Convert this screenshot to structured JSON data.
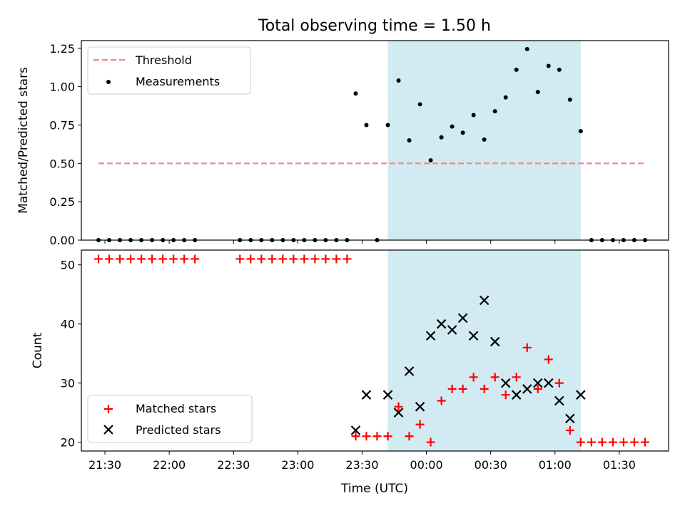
{
  "chart_data": {
    "title": "Total observing time = 1.50 h",
    "xlabel": "Time (UTC)",
    "x_unit": "hh:mm UTC (next-day times written as 24:xx / 25:xx)",
    "xlim": [
      "21:19",
      "25:53"
    ],
    "x_ticks": [
      "21:30",
      "22:00",
      "22:30",
      "23:00",
      "23:30",
      "00:00",
      "00:30",
      "01:00",
      "01:30"
    ],
    "x_tick_times": [
      "21:30",
      "22:00",
      "22:30",
      "23:00",
      "23:30",
      "24:00",
      "24:30",
      "25:00",
      "25:30"
    ],
    "observing_window": [
      "23:42",
      "25:12"
    ],
    "colors": {
      "threshold": "#ff7f7f",
      "measurements": "#000000",
      "matched": "#ff0000",
      "predicted": "#000000",
      "window": "#add8e6"
    },
    "panels": [
      {
        "type": "scatter",
        "ylabel": "Matched/Predicted stars",
        "ylim": [
          0,
          1.3
        ],
        "y_ticks": [
          "0.00",
          "0.25",
          "0.50",
          "0.75",
          "1.00",
          "1.25"
        ],
        "legend_position": "upper left",
        "threshold": {
          "name": "Threshold",
          "value": 0.5,
          "x_range": [
            "21:27",
            "25:42"
          ]
        },
        "series": [
          {
            "name": "Measurements",
            "x": [
              "21:27",
              "21:32",
              "21:37",
              "21:42",
              "21:47",
              "21:52",
              "21:57",
              "22:02",
              "22:07",
              "22:12",
              "22:33",
              "22:38",
              "22:43",
              "22:48",
              "22:53",
              "22:58",
              "23:03",
              "23:08",
              "23:13",
              "23:18",
              "23:23",
              "23:27",
              "23:32",
              "23:37",
              "23:42",
              "23:47",
              "23:52",
              "23:57",
              "24:02",
              "24:07",
              "24:12",
              "24:17",
              "24:22",
              "24:27",
              "24:32",
              "24:37",
              "24:42",
              "24:47",
              "24:52",
              "24:57",
              "25:02",
              "25:07",
              "25:12",
              "25:17",
              "25:22",
              "25:27",
              "25:32",
              "25:37",
              "25:42"
            ],
            "y": [
              0,
              0,
              0,
              0,
              0,
              0,
              0,
              0,
              0,
              0,
              0,
              0,
              0,
              0,
              0,
              0,
              0,
              0,
              0,
              0,
              0,
              0.955,
              0.75,
              0,
              0.75,
              1.04,
              0.65,
              0.885,
              0.52,
              0.67,
              0.74,
              0.7,
              0.815,
              0.655,
              0.84,
              0.93,
              1.11,
              1.245,
              0.965,
              1.135,
              1.11,
              0.915,
              0.71,
              0,
              0,
              0,
              0,
              0,
              0
            ]
          }
        ]
      },
      {
        "type": "scatter",
        "ylabel": "Count",
        "ylim": [
          18.5,
          52.5
        ],
        "y_ticks": [
          "20",
          "30",
          "40",
          "50"
        ],
        "legend_position": "lower left",
        "series": [
          {
            "name": "Matched stars",
            "x": [
              "21:27",
              "21:32",
              "21:37",
              "21:42",
              "21:47",
              "21:52",
              "21:57",
              "22:02",
              "22:07",
              "22:12",
              "22:33",
              "22:38",
              "22:43",
              "22:48",
              "22:53",
              "22:58",
              "23:03",
              "23:08",
              "23:13",
              "23:18",
              "23:23",
              "23:27",
              "23:32",
              "23:37",
              "23:42",
              "23:47",
              "23:52",
              "23:57",
              "24:02",
              "24:07",
              "24:12",
              "24:17",
              "24:22",
              "24:27",
              "24:32",
              "24:37",
              "24:42",
              "24:47",
              "24:52",
              "24:57",
              "25:02",
              "25:07",
              "25:12",
              "25:17",
              "25:22",
              "25:27",
              "25:32",
              "25:37",
              "25:42"
            ],
            "y": [
              51,
              51,
              51,
              51,
              51,
              51,
              51,
              51,
              51,
              51,
              51,
              51,
              51,
              51,
              51,
              51,
              51,
              51,
              51,
              51,
              51,
              21,
              21,
              21,
              21,
              26,
              21,
              23,
              20,
              27,
              29,
              29,
              31,
              29,
              31,
              28,
              31,
              36,
              29,
              34,
              30,
              22,
              20,
              20,
              20,
              20,
              20,
              20,
              20
            ]
          },
          {
            "name": "Predicted stars",
            "x": [
              "23:27",
              "23:32",
              "23:42",
              "23:47",
              "23:52",
              "23:57",
              "24:02",
              "24:07",
              "24:12",
              "24:17",
              "24:22",
              "24:27",
              "24:32",
              "24:37",
              "24:42",
              "24:47",
              "24:52",
              "24:57",
              "25:02",
              "25:07",
              "25:12"
            ],
            "y": [
              22,
              28,
              28,
              25,
              32,
              26,
              38,
              40,
              39,
              41,
              38,
              44,
              37,
              30,
              28,
              29,
              30,
              30,
              27,
              24,
              28
            ]
          }
        ]
      }
    ]
  }
}
